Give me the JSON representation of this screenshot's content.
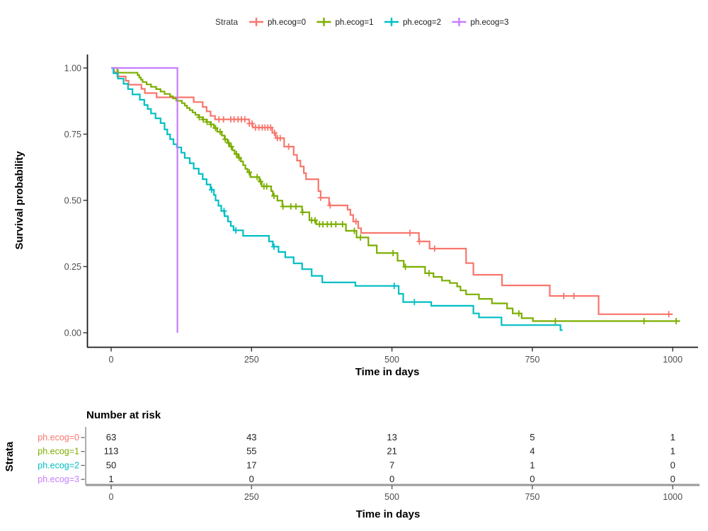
{
  "chart_data": {
    "type": "line",
    "subtype": "kaplan-meier-step",
    "title": "",
    "xlabel": "Time in days",
    "ylabel": "Survival probability",
    "legend_title": "Strata",
    "legend_position": "top",
    "xlim": [
      0,
      1022
    ],
    "ylim": [
      0,
      1
    ],
    "xticks": [
      0,
      250,
      500,
      750,
      1000
    ],
    "yticks": [
      0,
      0.25,
      0.5,
      0.75,
      1.0
    ],
    "ytick_labels": [
      "0.00",
      "0.25",
      "0.50",
      "0.75",
      "1.00"
    ],
    "grid": false,
    "series": [
      {
        "name": "ph.ecog=0",
        "color": "#F8766D",
        "n_start": 63,
        "end_time": 1000,
        "steps": [
          [
            5,
            0.984
          ],
          [
            11,
            0.968
          ],
          [
            26,
            0.952
          ],
          [
            31,
            0.937
          ],
          [
            54,
            0.921
          ],
          [
            60,
            0.905
          ],
          [
            81,
            0.889
          ],
          [
            147,
            0.871
          ],
          [
            163,
            0.853
          ],
          [
            170,
            0.836
          ],
          [
            177,
            0.819
          ],
          [
            185,
            0.806
          ],
          [
            246,
            0.79
          ],
          [
            252,
            0.775
          ],
          [
            287,
            0.755
          ],
          [
            293,
            0.735
          ],
          [
            308,
            0.703
          ],
          [
            325,
            0.672
          ],
          [
            331,
            0.65
          ],
          [
            337,
            0.628
          ],
          [
            343,
            0.603
          ],
          [
            347,
            0.58
          ],
          [
            369,
            0.535
          ],
          [
            373,
            0.51
          ],
          [
            388,
            0.481
          ],
          [
            421,
            0.465
          ],
          [
            426,
            0.445
          ],
          [
            431,
            0.42
          ],
          [
            440,
            0.395
          ],
          [
            445,
            0.377
          ],
          [
            548,
            0.345
          ],
          [
            567,
            0.318
          ],
          [
            632,
            0.263
          ],
          [
            645,
            0.219
          ],
          [
            696,
            0.179
          ],
          [
            781,
            0.139
          ],
          [
            868,
            0.07
          ]
        ],
        "censor_times": [
          192,
          200,
          213,
          219,
          226,
          232,
          238,
          246,
          251,
          257,
          263,
          269,
          274,
          279,
          284,
          291,
          296,
          301,
          316,
          373,
          390,
          436,
          532,
          549,
          576,
          806,
          824,
          993
        ]
      },
      {
        "name": "ph.ecog=1",
        "color": "#7CAE00",
        "n_start": 113,
        "end_time": 1013,
        "steps": [
          [
            11,
            0.991
          ],
          [
            12,
            0.982
          ],
          [
            47,
            0.973
          ],
          [
            50,
            0.964
          ],
          [
            53,
            0.956
          ],
          [
            56,
            0.947
          ],
          [
            63,
            0.938
          ],
          [
            71,
            0.929
          ],
          [
            80,
            0.92
          ],
          [
            88,
            0.911
          ],
          [
            95,
            0.902
          ],
          [
            105,
            0.893
          ],
          [
            110,
            0.885
          ],
          [
            116,
            0.876
          ],
          [
            126,
            0.867
          ],
          [
            131,
            0.858
          ],
          [
            135,
            0.849
          ],
          [
            140,
            0.841
          ],
          [
            145,
            0.832
          ],
          [
            150,
            0.823
          ],
          [
            156,
            0.814
          ],
          [
            163,
            0.805
          ],
          [
            170,
            0.796
          ],
          [
            177,
            0.787
          ],
          [
            183,
            0.773
          ],
          [
            189,
            0.759
          ],
          [
            197,
            0.745
          ],
          [
            202,
            0.731
          ],
          [
            207,
            0.717
          ],
          [
            211,
            0.703
          ],
          [
            216,
            0.689
          ],
          [
            220,
            0.675
          ],
          [
            226,
            0.661
          ],
          [
            231,
            0.647
          ],
          [
            235,
            0.633
          ],
          [
            239,
            0.619
          ],
          [
            243,
            0.606
          ],
          [
            248,
            0.588
          ],
          [
            264,
            0.571
          ],
          [
            268,
            0.553
          ],
          [
            285,
            0.535
          ],
          [
            288,
            0.517
          ],
          [
            296,
            0.499
          ],
          [
            305,
            0.477
          ],
          [
            340,
            0.455
          ],
          [
            353,
            0.425
          ],
          [
            365,
            0.41
          ],
          [
            418,
            0.385
          ],
          [
            437,
            0.36
          ],
          [
            458,
            0.33
          ],
          [
            473,
            0.301
          ],
          [
            510,
            0.272
          ],
          [
            521,
            0.249
          ],
          [
            559,
            0.225
          ],
          [
            574,
            0.211
          ],
          [
            589,
            0.197
          ],
          [
            603,
            0.188
          ],
          [
            616,
            0.175
          ],
          [
            622,
            0.16
          ],
          [
            632,
            0.145
          ],
          [
            655,
            0.128
          ],
          [
            678,
            0.111
          ],
          [
            705,
            0.092
          ],
          [
            715,
            0.073
          ],
          [
            731,
            0.055
          ],
          [
            751,
            0.044
          ]
        ],
        "censor_times": [
          157,
          164,
          171,
          178,
          186,
          194,
          203,
          209,
          214,
          223,
          228,
          246,
          260,
          266,
          272,
          277,
          290,
          306,
          320,
          329,
          341,
          357,
          363,
          371,
          377,
          385,
          392,
          400,
          412,
          433,
          444,
          502,
          524,
          566,
          726,
          791,
          949,
          1006
        ]
      },
      {
        "name": "ph.ecog=2",
        "color": "#00BFC4",
        "n_start": 50,
        "end_time": 804,
        "steps": [
          [
            4,
            0.98
          ],
          [
            12,
            0.96
          ],
          [
            22,
            0.94
          ],
          [
            30,
            0.92
          ],
          [
            38,
            0.9
          ],
          [
            51,
            0.88
          ],
          [
            59,
            0.86
          ],
          [
            65,
            0.845
          ],
          [
            71,
            0.828
          ],
          [
            79,
            0.81
          ],
          [
            88,
            0.792
          ],
          [
            95,
            0.768
          ],
          [
            100,
            0.749
          ],
          [
            105,
            0.731
          ],
          [
            111,
            0.712
          ],
          [
            117,
            0.7
          ],
          [
            125,
            0.68
          ],
          [
            131,
            0.66
          ],
          [
            140,
            0.64
          ],
          [
            147,
            0.62
          ],
          [
            156,
            0.6
          ],
          [
            163,
            0.58
          ],
          [
            170,
            0.56
          ],
          [
            177,
            0.54
          ],
          [
            183,
            0.52
          ],
          [
            186,
            0.5
          ],
          [
            191,
            0.48
          ],
          [
            196,
            0.46
          ],
          [
            202,
            0.44
          ],
          [
            208,
            0.42
          ],
          [
            213,
            0.403
          ],
          [
            218,
            0.387
          ],
          [
            235,
            0.366
          ],
          [
            281,
            0.345
          ],
          [
            288,
            0.325
          ],
          [
            298,
            0.305
          ],
          [
            310,
            0.285
          ],
          [
            325,
            0.262
          ],
          [
            340,
            0.24
          ],
          [
            357,
            0.215
          ],
          [
            376,
            0.19
          ],
          [
            435,
            0.177
          ],
          [
            512,
            0.147
          ],
          [
            520,
            0.116
          ],
          [
            570,
            0.102
          ],
          [
            645,
            0.073
          ],
          [
            655,
            0.058
          ],
          [
            695,
            0.029
          ],
          [
            800,
            0.01
          ]
        ],
        "censor_times": [
          179,
          201,
          222,
          290,
          504,
          540
        ]
      },
      {
        "name": "ph.ecog=3",
        "color": "#C77CFF",
        "n_start": 1,
        "end_time": 118,
        "steps": [
          [
            118,
            0.0
          ]
        ],
        "censor_times": []
      }
    ]
  },
  "risk_table": {
    "title": "Number at risk",
    "axis_title": "Strata",
    "xlabel": "Time in days",
    "times": [
      0,
      250,
      500,
      750,
      1000
    ],
    "rows": [
      {
        "label": "ph.ecog=0",
        "color": "#F8766D",
        "counts": [
          63,
          43,
          13,
          5,
          1
        ]
      },
      {
        "label": "ph.ecog=1",
        "color": "#7CAE00",
        "counts": [
          113,
          55,
          21,
          4,
          1
        ]
      },
      {
        "label": "ph.ecog=2",
        "color": "#00BFC4",
        "counts": [
          50,
          17,
          7,
          1,
          0
        ]
      },
      {
        "label": "ph.ecog=3",
        "color": "#C77CFF",
        "counts": [
          1,
          0,
          0,
          0,
          0
        ]
      }
    ]
  }
}
